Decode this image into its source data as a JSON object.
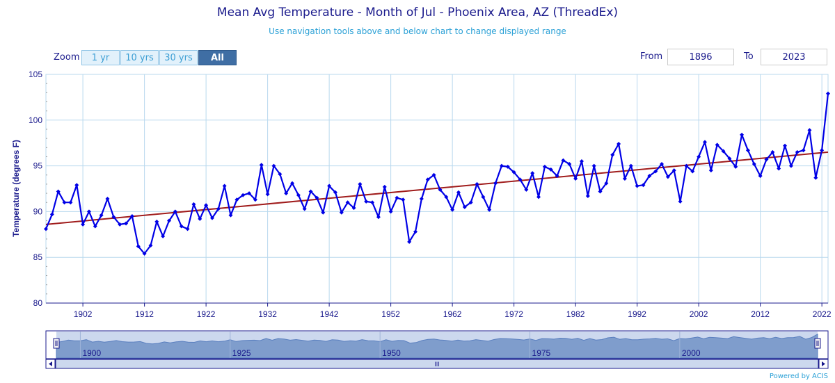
{
  "header": {
    "title": "Mean Avg Temperature - Month of Jul - Phoenix Area, AZ (ThreadEx)",
    "subtitle": "Use navigation tools above and below chart to change displayed range"
  },
  "zoom": {
    "label": "Zoom",
    "buttons": [
      "1 yr",
      "10 yrs",
      "30 yrs",
      "All"
    ],
    "active": "All"
  },
  "range": {
    "from_label": "From",
    "from_value": "1896",
    "to_label": "To",
    "to_value": "2023"
  },
  "navigator": {
    "labels": [
      "1900",
      "1925",
      "1950",
      "1975",
      "2000"
    ],
    "scroll_grip": "III"
  },
  "footer": {
    "powered_by": "Powered by ACIS"
  },
  "colors": {
    "series": "#0000e6",
    "trend": "#a01c1c",
    "grid": "#b8d8ee",
    "axis_text": "#1a1a8c"
  },
  "chart_data": {
    "type": "line",
    "title": "Mean Avg Temperature - Month of Jul - Phoenix Area, AZ (ThreadEx)",
    "ylabel": "Temperature (degrees F)",
    "xlabel": "",
    "ylim": [
      80,
      105
    ],
    "xlim": [
      1896,
      2023
    ],
    "yticks": [
      80,
      85,
      90,
      95,
      100,
      105
    ],
    "xticks": [
      1902,
      1912,
      1922,
      1932,
      1942,
      1952,
      1962,
      1972,
      1982,
      1992,
      2002,
      2012,
      2022
    ],
    "grid": true,
    "x": [
      1896,
      1897,
      1898,
      1899,
      1900,
      1901,
      1902,
      1903,
      1904,
      1905,
      1906,
      1907,
      1908,
      1909,
      1910,
      1911,
      1912,
      1913,
      1914,
      1915,
      1916,
      1917,
      1918,
      1919,
      1920,
      1921,
      1922,
      1923,
      1924,
      1925,
      1926,
      1927,
      1928,
      1929,
      1930,
      1931,
      1932,
      1933,
      1934,
      1935,
      1936,
      1937,
      1938,
      1939,
      1940,
      1941,
      1942,
      1943,
      1944,
      1945,
      1946,
      1947,
      1948,
      1949,
      1950,
      1951,
      1952,
      1953,
      1954,
      1955,
      1956,
      1957,
      1958,
      1959,
      1960,
      1961,
      1962,
      1963,
      1964,
      1965,
      1966,
      1967,
      1968,
      1969,
      1970,
      1971,
      1972,
      1973,
      1974,
      1975,
      1976,
      1977,
      1978,
      1979,
      1980,
      1981,
      1982,
      1983,
      1984,
      1985,
      1986,
      1987,
      1988,
      1989,
      1990,
      1991,
      1992,
      1993,
      1994,
      1995,
      1996,
      1997,
      1998,
      1999,
      2000,
      2001,
      2002,
      2003,
      2004,
      2005,
      2006,
      2007,
      2008,
      2009,
      2010,
      2011,
      2012,
      2013,
      2014,
      2015,
      2016,
      2017,
      2018,
      2019,
      2020,
      2021,
      2022,
      2023
    ],
    "series": [
      {
        "values": [
          88.1,
          89.7,
          92.2,
          91.0,
          91.0,
          92.9,
          88.6,
          90.0,
          88.4,
          89.6,
          91.4,
          89.4,
          88.6,
          88.7,
          89.5,
          86.2,
          85.4,
          86.3,
          88.9,
          87.3,
          89.0,
          90.0,
          88.4,
          88.1,
          90.8,
          89.2,
          90.7,
          89.3,
          90.3,
          92.8,
          89.6,
          91.3,
          91.8,
          92.0,
          91.3,
          95.1,
          91.9,
          95.0,
          94.1,
          92.0,
          93.1,
          91.8,
          90.3,
          92.2,
          91.5,
          89.9,
          92.8,
          92.1,
          89.9,
          91.0,
          90.4,
          93.0,
          91.1,
          91.0,
          89.4,
          92.7,
          90.0,
          91.5,
          91.3,
          86.7,
          87.8,
          91.4,
          93.5,
          94.0,
          92.4,
          91.6,
          90.2,
          92.1,
          90.5,
          91.0,
          93.0,
          91.6,
          90.2,
          93.1,
          95.0,
          94.9,
          94.3,
          93.5,
          92.4,
          94.2,
          91.6,
          94.9,
          94.6,
          93.9,
          95.6,
          95.2,
          93.6,
          95.5,
          91.7,
          95.0,
          92.2,
          93.1,
          96.2,
          97.4,
          93.6,
          95.0,
          92.8,
          92.9,
          93.9,
          94.4,
          95.2,
          93.8,
          94.5,
          91.1,
          95.0,
          94.4,
          96.0,
          97.6,
          94.5,
          97.3,
          96.6,
          95.8,
          94.9,
          98.4,
          96.7,
          95.2,
          93.9,
          95.7,
          96.5,
          94.7,
          97.2,
          95.0,
          96.5,
          96.7,
          98.9,
          93.7,
          96.7,
          102.9
        ]
      }
    ],
    "trend_line": {
      "x": [
        1896,
        2023
      ],
      "y": [
        88.6,
        96.5
      ]
    }
  }
}
